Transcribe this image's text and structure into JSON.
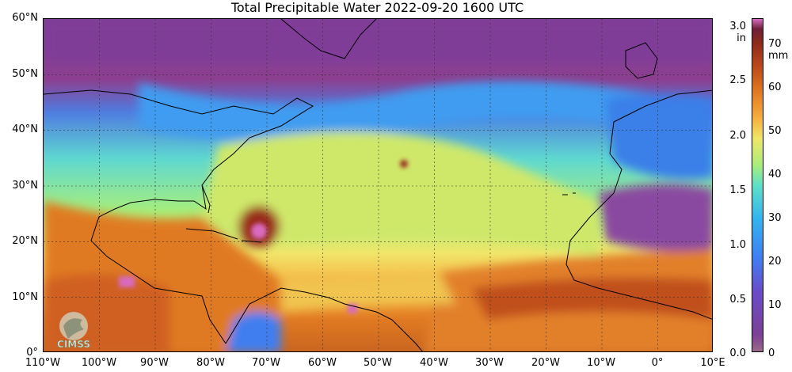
{
  "title": "Total Precipitable Water  2022-09-20 1600 UTC",
  "lat_labels": [
    "60°N",
    "50°N",
    "40°N",
    "30°N",
    "20°N",
    "10°N",
    "0°"
  ],
  "lon_labels": [
    "110°W",
    "100°W",
    "90°W",
    "80°W",
    "70°W",
    "60°W",
    "50°W",
    "40°W",
    "30°W",
    "20°W",
    "10°W",
    "0°",
    "10°E"
  ],
  "colorbar": {
    "inch_unit_line1": "3.0",
    "inch_unit_line2": "in",
    "mm_unit": "mm",
    "inch_ticks": [
      "2.5",
      "2.0",
      "1.5",
      "1.0",
      "0.5",
      "0.0"
    ],
    "mm_ticks": [
      "70",
      "60",
      "50",
      "40",
      "30",
      "20",
      "10",
      "0"
    ],
    "colors": [
      "#9b6a8a",
      "#7d3f96",
      "#6a4cc8",
      "#3f7ef0",
      "#34b4ef",
      "#5fe0c8",
      "#a8ee7a",
      "#f0e66a",
      "#f7b040",
      "#e07a22",
      "#b8481a",
      "#8a2a1a",
      "#6e1f3a",
      "#d86bc0"
    ]
  },
  "logo_text": "CIMSS",
  "field_colors": {
    "dry": "#7d3f96",
    "moist": "#34b4ef",
    "humid": "#f0e66a",
    "wet": "#e07a22",
    "very_wet": "#8a2a1a",
    "extreme": "#d86bc0"
  }
}
